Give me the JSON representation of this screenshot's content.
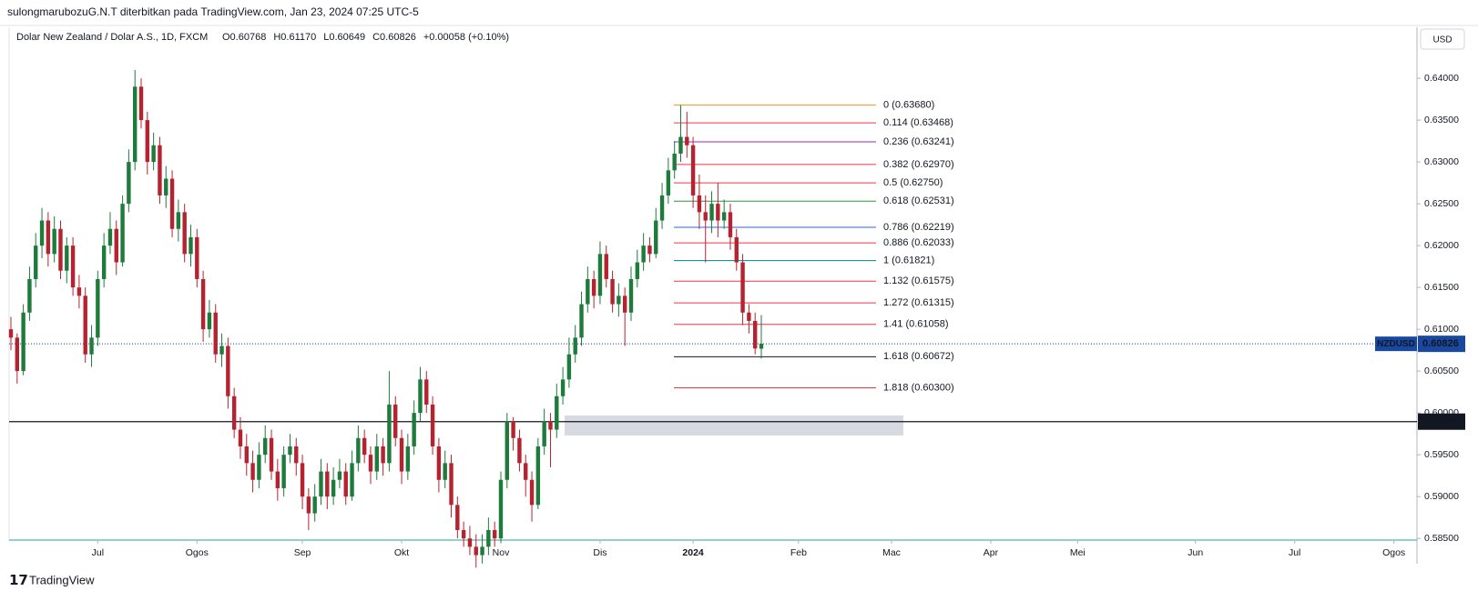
{
  "header": {
    "publisher": "sulongmarubozuG.N.T diterbitkan pada TradingView.com, Jan 23, 2024 07:25 UTC-5",
    "symbol": "Dolar New Zealand / Dolar A.S., 1D, FXCM",
    "ohlc": [
      "O0.60768",
      "H0.61170",
      "L0.60649",
      "C0.60826",
      "+0.00058 (+0.10%)"
    ],
    "currency": "USD"
  },
  "chart_data": {
    "type": "candlestick",
    "up_color": "#1e7b3c",
    "down_color": "#b4232f",
    "ylim": [
      0.5848,
      0.6461
    ],
    "yticks": [
      {
        "value": 0.585,
        "label": "0.58500"
      },
      {
        "value": 0.59,
        "label": "0.59000"
      },
      {
        "value": 0.595,
        "label": "0.59500"
      },
      {
        "value": 0.6,
        "label": "0.60000"
      },
      {
        "value": 0.605,
        "label": "0.60500"
      },
      {
        "value": 0.61,
        "label": "0.61000"
      },
      {
        "value": 0.615,
        "label": "0.61500"
      },
      {
        "value": 0.62,
        "label": "0.62000"
      },
      {
        "value": 0.625,
        "label": "0.62500"
      },
      {
        "value": 0.63,
        "label": "0.63000"
      },
      {
        "value": 0.635,
        "label": "0.63500"
      },
      {
        "value": 0.64,
        "label": "0.64000"
      }
    ],
    "xticks": [
      {
        "value": 14,
        "label": "Jul"
      },
      {
        "value": 30,
        "label": "Ogos"
      },
      {
        "value": 47,
        "label": "Sep"
      },
      {
        "value": 63,
        "label": "Okt"
      },
      {
        "value": 79,
        "label": "Nov"
      },
      {
        "value": 95,
        "label": "Dis"
      },
      {
        "value": 110,
        "label": "2024"
      },
      {
        "value": 127,
        "label": "Feb"
      },
      {
        "value": 142,
        "label": "Mac"
      },
      {
        "value": 158,
        "label": "Apr"
      },
      {
        "value": 172,
        "label": "Mei"
      },
      {
        "value": 191,
        "label": "Jun"
      },
      {
        "value": 207,
        "label": "Jul"
      },
      {
        "value": 223,
        "label": "Ogos"
      }
    ],
    "candles": [
      [
        0.61,
        0.6115,
        0.6075,
        0.609
      ],
      [
        0.609,
        0.6095,
        0.6035,
        0.605
      ],
      [
        0.605,
        0.613,
        0.6045,
        0.612
      ],
      [
        0.612,
        0.6175,
        0.611,
        0.616
      ],
      [
        0.616,
        0.6215,
        0.615,
        0.62
      ],
      [
        0.62,
        0.6245,
        0.6185,
        0.623
      ],
      [
        0.623,
        0.624,
        0.6175,
        0.619
      ],
      [
        0.619,
        0.6235,
        0.618,
        0.622
      ],
      [
        0.622,
        0.623,
        0.616,
        0.617
      ],
      [
        0.617,
        0.621,
        0.6155,
        0.62
      ],
      [
        0.62,
        0.621,
        0.614,
        0.615
      ],
      [
        0.615,
        0.6165,
        0.6125,
        0.614
      ],
      [
        0.614,
        0.615,
        0.606,
        0.607
      ],
      [
        0.607,
        0.6105,
        0.6055,
        0.609
      ],
      [
        0.609,
        0.617,
        0.608,
        0.616
      ],
      [
        0.616,
        0.6215,
        0.615,
        0.62
      ],
      [
        0.62,
        0.624,
        0.619,
        0.622
      ],
      [
        0.622,
        0.623,
        0.6165,
        0.618
      ],
      [
        0.618,
        0.626,
        0.6175,
        0.625
      ],
      [
        0.625,
        0.6315,
        0.624,
        0.63
      ],
      [
        0.63,
        0.641,
        0.629,
        0.639
      ],
      [
        0.639,
        0.64,
        0.634,
        0.635
      ],
      [
        0.635,
        0.636,
        0.6285,
        0.63
      ],
      [
        0.63,
        0.6335,
        0.629,
        0.632
      ],
      [
        0.632,
        0.633,
        0.625,
        0.626
      ],
      [
        0.626,
        0.6295,
        0.6245,
        0.628
      ],
      [
        0.628,
        0.629,
        0.621,
        0.622
      ],
      [
        0.622,
        0.6255,
        0.6205,
        0.624
      ],
      [
        0.624,
        0.625,
        0.618,
        0.619
      ],
      [
        0.619,
        0.6225,
        0.6175,
        0.621
      ],
      [
        0.621,
        0.622,
        0.615,
        0.616
      ],
      [
        0.616,
        0.617,
        0.6085,
        0.61
      ],
      [
        0.61,
        0.6135,
        0.609,
        0.612
      ],
      [
        0.612,
        0.613,
        0.606,
        0.607
      ],
      [
        0.607,
        0.6095,
        0.6055,
        0.608
      ],
      [
        0.608,
        0.609,
        0.6005,
        0.602
      ],
      [
        0.602,
        0.603,
        0.597,
        0.598
      ],
      [
        0.598,
        0.5995,
        0.5945,
        0.596
      ],
      [
        0.596,
        0.5975,
        0.5925,
        0.594
      ],
      [
        0.594,
        0.5955,
        0.5905,
        0.592
      ],
      [
        0.592,
        0.5965,
        0.591,
        0.595
      ],
      [
        0.595,
        0.5985,
        0.594,
        0.597
      ],
      [
        0.597,
        0.598,
        0.592,
        0.593
      ],
      [
        0.593,
        0.5945,
        0.5895,
        0.591
      ],
      [
        0.591,
        0.596,
        0.59,
        0.595
      ],
      [
        0.595,
        0.5975,
        0.594,
        0.596
      ],
      [
        0.596,
        0.597,
        0.5925,
        0.594
      ],
      [
        0.594,
        0.595,
        0.5885,
        0.59
      ],
      [
        0.59,
        0.591,
        0.586,
        0.588
      ],
      [
        0.588,
        0.5915,
        0.587,
        0.59
      ],
      [
        0.59,
        0.5945,
        0.589,
        0.593
      ],
      [
        0.593,
        0.594,
        0.5885,
        0.59
      ],
      [
        0.59,
        0.5935,
        0.589,
        0.592
      ],
      [
        0.592,
        0.5945,
        0.591,
        0.593
      ],
      [
        0.593,
        0.594,
        0.589,
        0.59
      ],
      [
        0.59,
        0.5955,
        0.5895,
        0.594
      ],
      [
        0.594,
        0.5985,
        0.593,
        0.597
      ],
      [
        0.597,
        0.598,
        0.594,
        0.595
      ],
      [
        0.595,
        0.596,
        0.5915,
        0.593
      ],
      [
        0.593,
        0.5975,
        0.592,
        0.596
      ],
      [
        0.596,
        0.597,
        0.5925,
        0.594
      ],
      [
        0.594,
        0.605,
        0.593,
        0.601
      ],
      [
        0.601,
        0.602,
        0.596,
        0.597
      ],
      [
        0.597,
        0.598,
        0.5915,
        0.593
      ],
      [
        0.593,
        0.5975,
        0.592,
        0.596
      ],
      [
        0.596,
        0.6015,
        0.595,
        0.6
      ],
      [
        0.6,
        0.6055,
        0.599,
        0.604
      ],
      [
        0.604,
        0.605,
        0.6,
        0.601
      ],
      [
        0.601,
        0.602,
        0.595,
        0.596
      ],
      [
        0.596,
        0.597,
        0.5905,
        0.592
      ],
      [
        0.592,
        0.5955,
        0.591,
        0.594
      ],
      [
        0.594,
        0.595,
        0.5875,
        0.589
      ],
      [
        0.589,
        0.59,
        0.585,
        0.586
      ],
      [
        0.586,
        0.587,
        0.584,
        0.585
      ],
      [
        0.585,
        0.5865,
        0.583,
        0.584
      ],
      [
        0.584,
        0.5855,
        0.5815,
        0.583
      ],
      [
        0.583,
        0.5855,
        0.582,
        0.584
      ],
      [
        0.584,
        0.5875,
        0.583,
        0.586
      ],
      [
        0.586,
        0.587,
        0.584,
        0.585
      ],
      [
        0.585,
        0.593,
        0.5845,
        0.592
      ],
      [
        0.592,
        0.6,
        0.591,
        0.599
      ],
      [
        0.599,
        0.5995,
        0.5955,
        0.597
      ],
      [
        0.597,
        0.598,
        0.593,
        0.594
      ],
      [
        0.594,
        0.595,
        0.59,
        0.592
      ],
      [
        0.592,
        0.593,
        0.587,
        0.589
      ],
      [
        0.589,
        0.597,
        0.5885,
        0.596
      ],
      [
        0.596,
        0.6005,
        0.595,
        0.599
      ],
      [
        0.599,
        0.6,
        0.5935,
        0.598
      ],
      [
        0.598,
        0.6035,
        0.597,
        0.602
      ],
      [
        0.602,
        0.6055,
        0.601,
        0.604
      ],
      [
        0.604,
        0.609,
        0.603,
        0.607
      ],
      [
        0.607,
        0.6105,
        0.606,
        0.609
      ],
      [
        0.609,
        0.6145,
        0.608,
        0.613
      ],
      [
        0.613,
        0.6175,
        0.612,
        0.616
      ],
      [
        0.616,
        0.617,
        0.6125,
        0.614
      ],
      [
        0.614,
        0.6205,
        0.613,
        0.619
      ],
      [
        0.619,
        0.62,
        0.615,
        0.616
      ],
      [
        0.616,
        0.617,
        0.612,
        0.613
      ],
      [
        0.613,
        0.6155,
        0.6115,
        0.614
      ],
      [
        0.614,
        0.615,
        0.608,
        0.612
      ],
      [
        0.612,
        0.6175,
        0.611,
        0.616
      ],
      [
        0.616,
        0.6195,
        0.615,
        0.618
      ],
      [
        0.618,
        0.6215,
        0.617,
        0.62
      ],
      [
        0.62,
        0.621,
        0.618,
        0.619
      ],
      [
        0.619,
        0.6245,
        0.6185,
        0.623
      ],
      [
        0.623,
        0.6275,
        0.622,
        0.626
      ],
      [
        0.626,
        0.6305,
        0.625,
        0.629
      ],
      [
        0.629,
        0.6325,
        0.628,
        0.631
      ],
      [
        0.631,
        0.6368,
        0.63,
        0.633
      ],
      [
        0.633,
        0.636,
        0.6305,
        0.632
      ],
      [
        0.632,
        0.633,
        0.6245,
        0.626
      ],
      [
        0.626,
        0.6285,
        0.622,
        0.624
      ],
      [
        0.624,
        0.626,
        0.618,
        0.623
      ],
      [
        0.623,
        0.6265,
        0.6215,
        0.625
      ],
      [
        0.625,
        0.6275,
        0.621,
        0.623
      ],
      [
        0.623,
        0.6255,
        0.622,
        0.624
      ],
      [
        0.624,
        0.625,
        0.6195,
        0.621
      ],
      [
        0.621,
        0.622,
        0.617,
        0.618
      ],
      [
        0.618,
        0.619,
        0.6105,
        0.612
      ],
      [
        0.612,
        0.613,
        0.6095,
        0.611
      ],
      [
        0.611,
        0.612,
        0.607,
        0.6077
      ],
      [
        0.60768,
        0.6117,
        0.60649,
        0.60826
      ]
    ],
    "fib": [
      {
        "label": "0 (0.63680)",
        "value": 0.6368,
        "color": "#f7931a"
      },
      {
        "label": "0.114 (0.63468)",
        "value": 0.63468,
        "color": "#f23645"
      },
      {
        "label": "0.236 (0.63241)",
        "value": 0.63241,
        "color": "#9c27b0"
      },
      {
        "label": "0.382 (0.62970)",
        "value": 0.6297,
        "color": "#f23645"
      },
      {
        "label": "0.5 (0.62750)",
        "value": 0.6275,
        "color": "#f23645"
      },
      {
        "label": "0.618 (0.62531)",
        "value": 0.62531,
        "color": "#388e3c"
      },
      {
        "label": "0.786 (0.62219)",
        "value": 0.62219,
        "color": "#2962ff"
      },
      {
        "label": "0.886 (0.62033)",
        "value": 0.62033,
        "color": "#f23645"
      },
      {
        "label": "1 (0.61821)",
        "value": 0.61821,
        "color": "#00838f"
      },
      {
        "label": "1.132 (0.61575)",
        "value": 0.61575,
        "color": "#f23645"
      },
      {
        "label": "1.272 (0.61315)",
        "value": 0.61315,
        "color": "#f23645"
      },
      {
        "label": "1.41 (0.61058)",
        "value": 0.61058,
        "color": "#f23645"
      },
      {
        "label": "1.618 (0.60672)",
        "value": 0.60672,
        "color": "#131722"
      },
      {
        "label": "1.818 (0.60300)",
        "value": 0.603,
        "color": "#f23645"
      }
    ],
    "hline": {
      "value": 0.59896,
      "color": "#131722"
    },
    "zone": [
      0.5973,
      0.5997
    ],
    "last": {
      "symbol": "NZDUSD",
      "value": 0.60826,
      "color": "#1848a0"
    }
  },
  "footer": "TradingView"
}
